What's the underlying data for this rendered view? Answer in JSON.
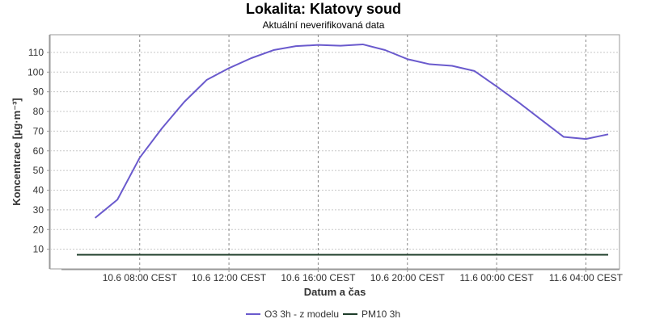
{
  "chart_data": {
    "type": "line",
    "title": "Lokalita: Klatovy soud",
    "subtitle": "Aktuální neverifikovaná data",
    "xlabel": "Datum a čas",
    "ylabel": "Koncentrace [µg·m⁻³]",
    "ylim": [
      0,
      119
    ],
    "yticks": [
      10,
      20,
      30,
      40,
      50,
      60,
      70,
      80,
      90,
      100,
      110
    ],
    "xlim": [
      "2024-06-10 05:00",
      "2024-06-11 05:00"
    ],
    "xticks": [
      {
        "x": "2024-06-10 08:00",
        "label": "10.6 08:00 CEST"
      },
      {
        "x": "2024-06-10 12:00",
        "label": "10.6 12:00 CEST"
      },
      {
        "x": "2024-06-10 16:00",
        "label": "10.6 16:00 CEST"
      },
      {
        "x": "2024-06-10 20:00",
        "label": "10.6 20:00 CEST"
      },
      {
        "x": "2024-06-11 00:00",
        "label": "11.6 00:00 CEST"
      },
      {
        "x": "2024-06-11 04:00",
        "label": "11.6 04:00 CEST"
      }
    ],
    "grid": true,
    "legend_position": "bottom",
    "series": [
      {
        "name": "O3 3h - z modelu",
        "color": "#6a5acd",
        "x": [
          "2024-06-10 06:00",
          "2024-06-10 07:00",
          "2024-06-10 08:00",
          "2024-06-10 09:00",
          "2024-06-10 10:00",
          "2024-06-10 11:00",
          "2024-06-10 12:00",
          "2024-06-10 13:00",
          "2024-06-10 14:00",
          "2024-06-10 15:00",
          "2024-06-10 16:00",
          "2024-06-10 17:00",
          "2024-06-10 18:00",
          "2024-06-10 19:00",
          "2024-06-10 20:00",
          "2024-06-10 21:00",
          "2024-06-10 22:00",
          "2024-06-10 23:00",
          "2024-06-11 00:00",
          "2024-06-11 01:00",
          "2024-06-11 02:00",
          "2024-06-11 03:00",
          "2024-06-11 04:00",
          "2024-06-11 05:00"
        ],
        "y": [
          25.9,
          35.2,
          56.5,
          71.5,
          84.9,
          96.0,
          102.0,
          107.1,
          111.2,
          113.2,
          113.8,
          113.4,
          114.1,
          111.2,
          106.6,
          104.0,
          103.2,
          100.6,
          92.7,
          84.5,
          75.8,
          67.1,
          66.0,
          68.4
        ]
      },
      {
        "name": "PM10 3h",
        "color": "#1e3d2a",
        "x": [
          "2024-06-10 05:00",
          "2024-06-11 05:00"
        ],
        "y": [
          7.2,
          7.2
        ]
      }
    ]
  }
}
